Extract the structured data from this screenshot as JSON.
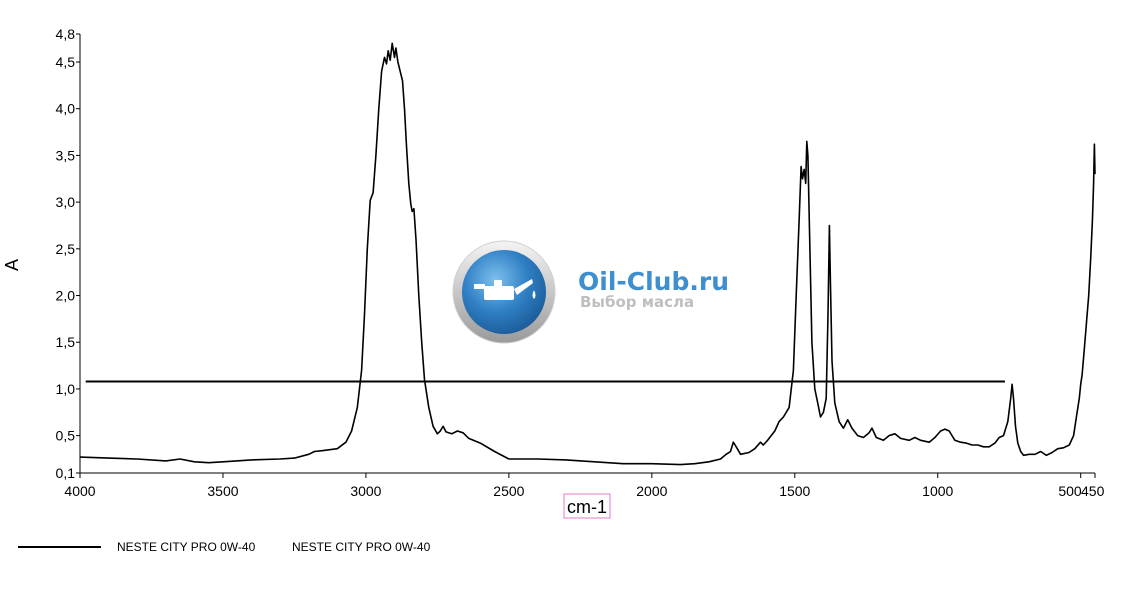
{
  "chart_data": {
    "type": "line",
    "xlabel": "cm-1",
    "ylabel": "A",
    "x_reversed": true,
    "xlim": [
      4000,
      450
    ],
    "ylim": [
      0.1,
      4.8
    ],
    "x_ticks": [
      {
        "value": 4000,
        "label": "4000"
      },
      {
        "value": 3500,
        "label": "3500"
      },
      {
        "value": 3000,
        "label": "3000"
      },
      {
        "value": 2500,
        "label": "2500"
      },
      {
        "value": 2000,
        "label": "2000"
      },
      {
        "value": 1500,
        "label": "1500"
      },
      {
        "value": 1000,
        "label": "1000"
      },
      {
        "value": 500,
        "label": "500"
      },
      {
        "value": 450,
        "label": "450"
      }
    ],
    "y_ticks": [
      {
        "value": 0.1,
        "label": "0,1"
      },
      {
        "value": 0.5,
        "label": "0,5"
      },
      {
        "value": 1.0,
        "label": "1,0"
      },
      {
        "value": 1.5,
        "label": "1,5"
      },
      {
        "value": 2.0,
        "label": "2,0"
      },
      {
        "value": 2.5,
        "label": "2,5"
      },
      {
        "value": 3.0,
        "label": "3,0"
      },
      {
        "value": 3.5,
        "label": "3,5"
      },
      {
        "value": 4.0,
        "label": "4,0"
      },
      {
        "value": 4.5,
        "label": "4,5"
      },
      {
        "value": 4.8,
        "label": "4,8"
      }
    ],
    "baseline": {
      "x_start": 3980,
      "x_end": 765,
      "y": 1.08
    },
    "series": [
      {
        "name": "NESTE CITY PRO 0W-40",
        "color": "#000000",
        "points": [
          [
            4000,
            0.27
          ],
          [
            3900,
            0.26
          ],
          [
            3800,
            0.25
          ],
          [
            3700,
            0.23
          ],
          [
            3650,
            0.25
          ],
          [
            3600,
            0.22
          ],
          [
            3550,
            0.21
          ],
          [
            3500,
            0.22
          ],
          [
            3400,
            0.24
          ],
          [
            3300,
            0.25
          ],
          [
            3250,
            0.26
          ],
          [
            3200,
            0.3
          ],
          [
            3180,
            0.33
          ],
          [
            3150,
            0.34
          ],
          [
            3100,
            0.36
          ],
          [
            3070,
            0.43
          ],
          [
            3050,
            0.55
          ],
          [
            3030,
            0.8
          ],
          [
            3015,
            1.2
          ],
          [
            3005,
            1.8
          ],
          [
            2995,
            2.5
          ],
          [
            2985,
            3.02
          ],
          [
            2975,
            3.1
          ],
          [
            2965,
            3.5
          ],
          [
            2955,
            4.0
          ],
          [
            2945,
            4.4
          ],
          [
            2935,
            4.55
          ],
          [
            2928,
            4.48
          ],
          [
            2922,
            4.62
          ],
          [
            2915,
            4.52
          ],
          [
            2908,
            4.7
          ],
          [
            2900,
            4.55
          ],
          [
            2895,
            4.65
          ],
          [
            2888,
            4.5
          ],
          [
            2880,
            4.4
          ],
          [
            2872,
            4.3
          ],
          [
            2865,
            4.0
          ],
          [
            2858,
            3.6
          ],
          [
            2850,
            3.2
          ],
          [
            2843,
            2.98
          ],
          [
            2838,
            2.9
          ],
          [
            2832,
            2.93
          ],
          [
            2825,
            2.6
          ],
          [
            2815,
            2.0
          ],
          [
            2805,
            1.5
          ],
          [
            2795,
            1.1
          ],
          [
            2780,
            0.8
          ],
          [
            2765,
            0.6
          ],
          [
            2750,
            0.52
          ],
          [
            2740,
            0.55
          ],
          [
            2730,
            0.6
          ],
          [
            2720,
            0.54
          ],
          [
            2700,
            0.52
          ],
          [
            2680,
            0.55
          ],
          [
            2660,
            0.53
          ],
          [
            2640,
            0.47
          ],
          [
            2600,
            0.42
          ],
          [
            2550,
            0.33
          ],
          [
            2500,
            0.25
          ],
          [
            2400,
            0.25
          ],
          [
            2300,
            0.24
          ],
          [
            2200,
            0.22
          ],
          [
            2100,
            0.2
          ],
          [
            2000,
            0.2
          ],
          [
            1900,
            0.19
          ],
          [
            1850,
            0.2
          ],
          [
            1800,
            0.22
          ],
          [
            1760,
            0.25
          ],
          [
            1740,
            0.3
          ],
          [
            1725,
            0.33
          ],
          [
            1715,
            0.43
          ],
          [
            1705,
            0.38
          ],
          [
            1690,
            0.3
          ],
          [
            1660,
            0.32
          ],
          [
            1640,
            0.36
          ],
          [
            1620,
            0.43
          ],
          [
            1610,
            0.4
          ],
          [
            1595,
            0.45
          ],
          [
            1570,
            0.55
          ],
          [
            1555,
            0.65
          ],
          [
            1540,
            0.7
          ],
          [
            1520,
            0.8
          ],
          [
            1505,
            1.2
          ],
          [
            1495,
            2.0
          ],
          [
            1485,
            2.8
          ],
          [
            1478,
            3.38
          ],
          [
            1473,
            3.25
          ],
          [
            1467,
            3.35
          ],
          [
            1462,
            3.2
          ],
          [
            1458,
            3.65
          ],
          [
            1454,
            3.5
          ],
          [
            1448,
            2.6
          ],
          [
            1440,
            1.5
          ],
          [
            1430,
            1.0
          ],
          [
            1420,
            0.85
          ],
          [
            1410,
            0.7
          ],
          [
            1400,
            0.75
          ],
          [
            1390,
            0.9
          ],
          [
            1384,
            1.8
          ],
          [
            1379,
            2.75
          ],
          [
            1375,
            2.1
          ],
          [
            1370,
            1.3
          ],
          [
            1360,
            0.85
          ],
          [
            1345,
            0.65
          ],
          [
            1330,
            0.58
          ],
          [
            1315,
            0.67
          ],
          [
            1300,
            0.58
          ],
          [
            1280,
            0.5
          ],
          [
            1260,
            0.48
          ],
          [
            1240,
            0.53
          ],
          [
            1230,
            0.58
          ],
          [
            1215,
            0.48
          ],
          [
            1190,
            0.45
          ],
          [
            1170,
            0.5
          ],
          [
            1150,
            0.52
          ],
          [
            1130,
            0.47
          ],
          [
            1100,
            0.45
          ],
          [
            1080,
            0.48
          ],
          [
            1060,
            0.45
          ],
          [
            1030,
            0.43
          ],
          [
            1010,
            0.48
          ],
          [
            990,
            0.55
          ],
          [
            975,
            0.57
          ],
          [
            960,
            0.55
          ],
          [
            940,
            0.45
          ],
          [
            920,
            0.43
          ],
          [
            900,
            0.42
          ],
          [
            880,
            0.4
          ],
          [
            860,
            0.4
          ],
          [
            840,
            0.38
          ],
          [
            820,
            0.38
          ],
          [
            800,
            0.42
          ],
          [
            785,
            0.48
          ],
          [
            770,
            0.5
          ],
          [
            755,
            0.65
          ],
          [
            745,
            0.9
          ],
          [
            740,
            1.05
          ],
          [
            735,
            0.9
          ],
          [
            728,
            0.6
          ],
          [
            720,
            0.42
          ],
          [
            710,
            0.33
          ],
          [
            700,
            0.29
          ],
          [
            680,
            0.3
          ],
          [
            660,
            0.3
          ],
          [
            640,
            0.33
          ],
          [
            620,
            0.29
          ],
          [
            600,
            0.32
          ],
          [
            580,
            0.36
          ],
          [
            560,
            0.37
          ],
          [
            540,
            0.4
          ],
          [
            525,
            0.5
          ],
          [
            515,
            0.7
          ],
          [
            505,
            0.9
          ],
          [
            500,
            1.05
          ],
          [
            495,
            1.15
          ],
          [
            488,
            1.4
          ],
          [
            480,
            1.7
          ],
          [
            472,
            2.0
          ],
          [
            465,
            2.4
          ],
          [
            459,
            2.8
          ],
          [
            455,
            3.2
          ],
          [
            452,
            3.62
          ],
          [
            450,
            3.3
          ]
        ]
      }
    ],
    "legend": {
      "placement": "bottom-left",
      "entries": [
        "NESTE CITY PRO 0W-40",
        "NESTE CITY PRO 0W-40"
      ]
    }
  },
  "watermark": {
    "title": "Oil-Club.ru",
    "subtitle": "Выбор масла",
    "icon": "oil-can-icon",
    "title_color": "#3d8fd0",
    "subtitle_color": "#bfbfbf",
    "badge_color": "#2f7fc4"
  }
}
